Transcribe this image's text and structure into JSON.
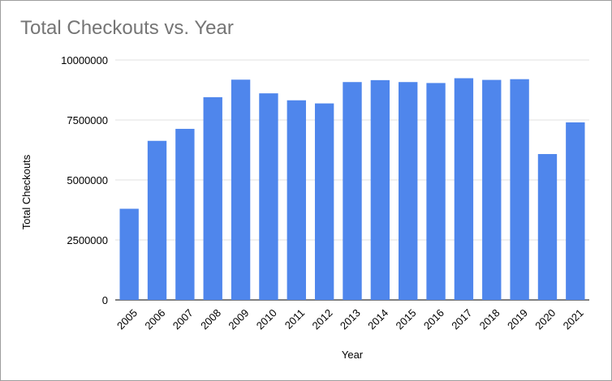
{
  "chart_data": {
    "type": "bar",
    "title": "Total Checkouts vs. Year",
    "xlabel": "Year",
    "ylabel": "Total Checkouts",
    "categories": [
      "2005",
      "2006",
      "2007",
      "2008",
      "2009",
      "2010",
      "2011",
      "2012",
      "2013",
      "2014",
      "2015",
      "2016",
      "2017",
      "2018",
      "2019",
      "2020",
      "2021"
    ],
    "series": [
      {
        "values": [
          3800000,
          6630000,
          7130000,
          8450000,
          9180000,
          8610000,
          8320000,
          8190000,
          9080000,
          9160000,
          9080000,
          9040000,
          9240000,
          9170000,
          9200000,
          6080000,
          7400000
        ]
      }
    ],
    "ylim": [
      0,
      10000000
    ],
    "yticks": [
      "0",
      "2500000",
      "5000000",
      "7500000",
      "10000000"
    ],
    "grid": true,
    "legend": "none",
    "colors": {
      "bar": "#4f86ec",
      "grid": "#e0e0e0",
      "axis": "#333333"
    }
  }
}
